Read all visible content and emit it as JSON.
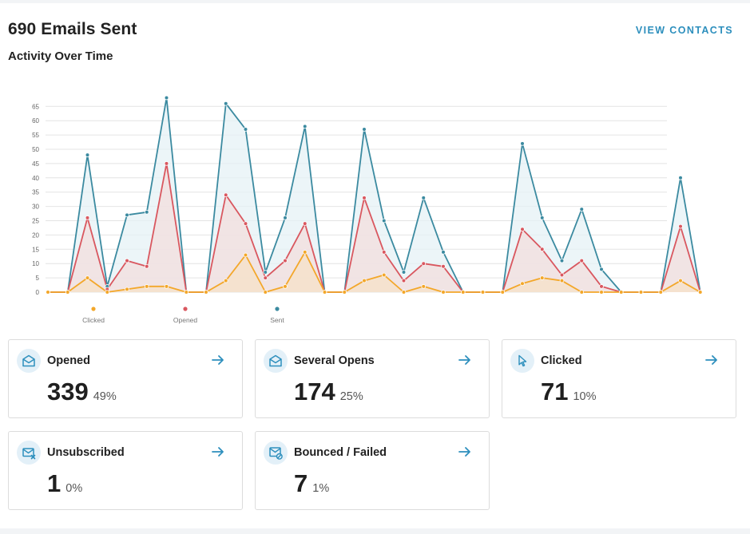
{
  "header": {
    "title": "690 Emails Sent",
    "subtitle": "Activity Over Time",
    "view_contacts": "VIEW CONTACTS"
  },
  "chart_data": {
    "type": "line",
    "title": "",
    "xlabel": "",
    "ylabel": "",
    "ylim": [
      0,
      68
    ],
    "y_ticks": [
      0,
      5,
      10,
      15,
      20,
      25,
      30,
      35,
      40,
      45,
      50,
      55,
      60,
      65
    ],
    "grid": true,
    "legend_position": "bottom-left",
    "series": [
      {
        "name": "Sent",
        "color": "#3b8aa0",
        "fill": "#e6f2f6",
        "values": [
          0,
          0,
          48,
          2,
          27,
          28,
          68,
          0,
          0,
          66,
          57,
          7,
          26,
          58,
          0,
          0,
          57,
          25,
          7,
          33,
          14,
          0,
          0,
          0,
          52,
          26,
          11,
          29,
          8,
          0,
          0,
          0,
          40,
          0
        ]
      },
      {
        "name": "Opened",
        "color": "#d9575f",
        "fill": "#f3dede",
        "values": [
          0,
          0,
          26,
          1,
          11,
          9,
          45,
          0,
          0,
          34,
          24,
          5,
          11,
          24,
          0,
          0,
          33,
          14,
          4,
          10,
          9,
          0,
          0,
          0,
          22,
          15,
          6,
          11,
          2,
          0,
          0,
          0,
          23,
          0
        ]
      },
      {
        "name": "Clicked",
        "color": "#f3a72a",
        "fill": "#f5e2c8",
        "values": [
          0,
          0,
          5,
          0,
          1,
          2,
          2,
          0,
          0,
          4,
          13,
          0,
          2,
          14,
          0,
          0,
          4,
          6,
          0,
          2,
          0,
          0,
          0,
          0,
          3,
          5,
          4,
          0,
          0,
          0,
          0,
          0,
          4,
          0
        ]
      }
    ]
  },
  "legend": {
    "items": [
      {
        "label": "Clicked",
        "color": "#f3a72a"
      },
      {
        "label": "Opened",
        "color": "#d9575f"
      },
      {
        "label": "Sent",
        "color": "#3b8aa0"
      }
    ]
  },
  "cards": [
    {
      "label": "Opened",
      "count": "339",
      "percent": "49%",
      "icon": "envelope-open-icon"
    },
    {
      "label": "Several Opens",
      "count": "174",
      "percent": "25%",
      "icon": "envelope-open-icon"
    },
    {
      "label": "Clicked",
      "count": "71",
      "percent": "10%",
      "icon": "cursor-click-icon"
    },
    {
      "label": "Unsubscribed",
      "count": "1",
      "percent": "0%",
      "icon": "envelope-x-icon"
    },
    {
      "label": "Bounced / Failed",
      "count": "7",
      "percent": "1%",
      "icon": "envelope-warning-icon"
    }
  ],
  "colors": {
    "accent": "#2d8fbd",
    "icon_bg": "#e3f0f8"
  }
}
